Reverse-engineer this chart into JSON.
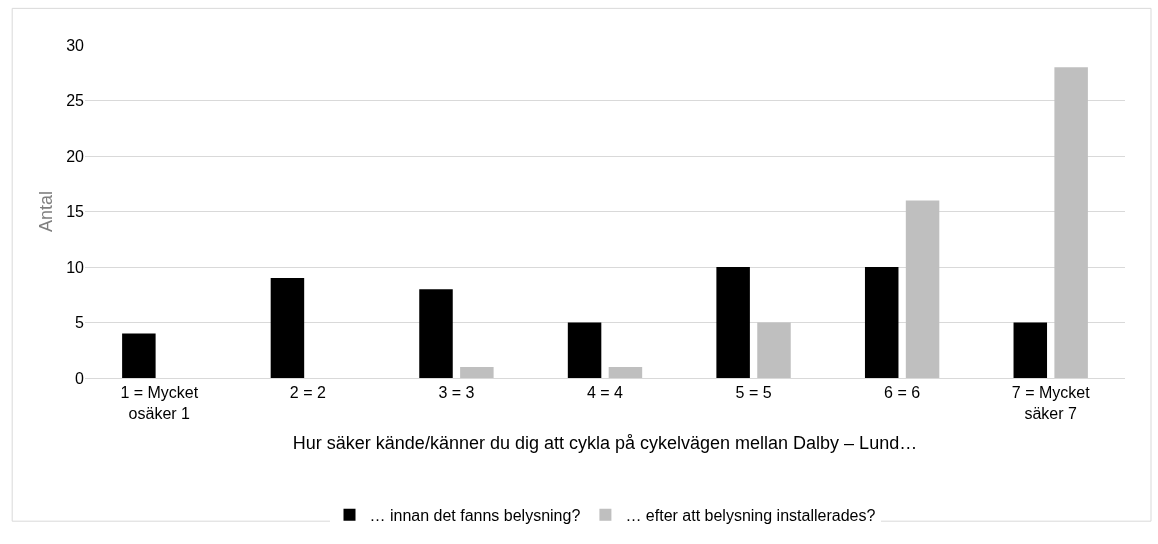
{
  "chart_data": {
    "type": "bar",
    "xlabel": "Hur säker kände/känner du dig att cykla på cykelvägen mellan Dalby – Lund…",
    "ylabel": "Antal",
    "categories": [
      "1 = Mycket osäker 1",
      "2 = 2",
      "3 = 3",
      "4 = 4",
      "5 = 5",
      "6 = 6",
      "7 = Mycket säker 7"
    ],
    "series": [
      {
        "name": "… innan det fanns belysning?",
        "color": "#000000",
        "values": [
          4,
          9,
          8,
          5,
          10,
          10,
          5
        ]
      },
      {
        "name": "… efter att belysning installerades?",
        "color": "#bfbfbf",
        "values": [
          0,
          0,
          1,
          1,
          5,
          16,
          28
        ]
      }
    ],
    "ylim": [
      0,
      30
    ],
    "yticks": [
      0,
      5,
      10,
      15,
      20,
      25,
      30
    ],
    "grid": "y",
    "legend": "bottom"
  }
}
